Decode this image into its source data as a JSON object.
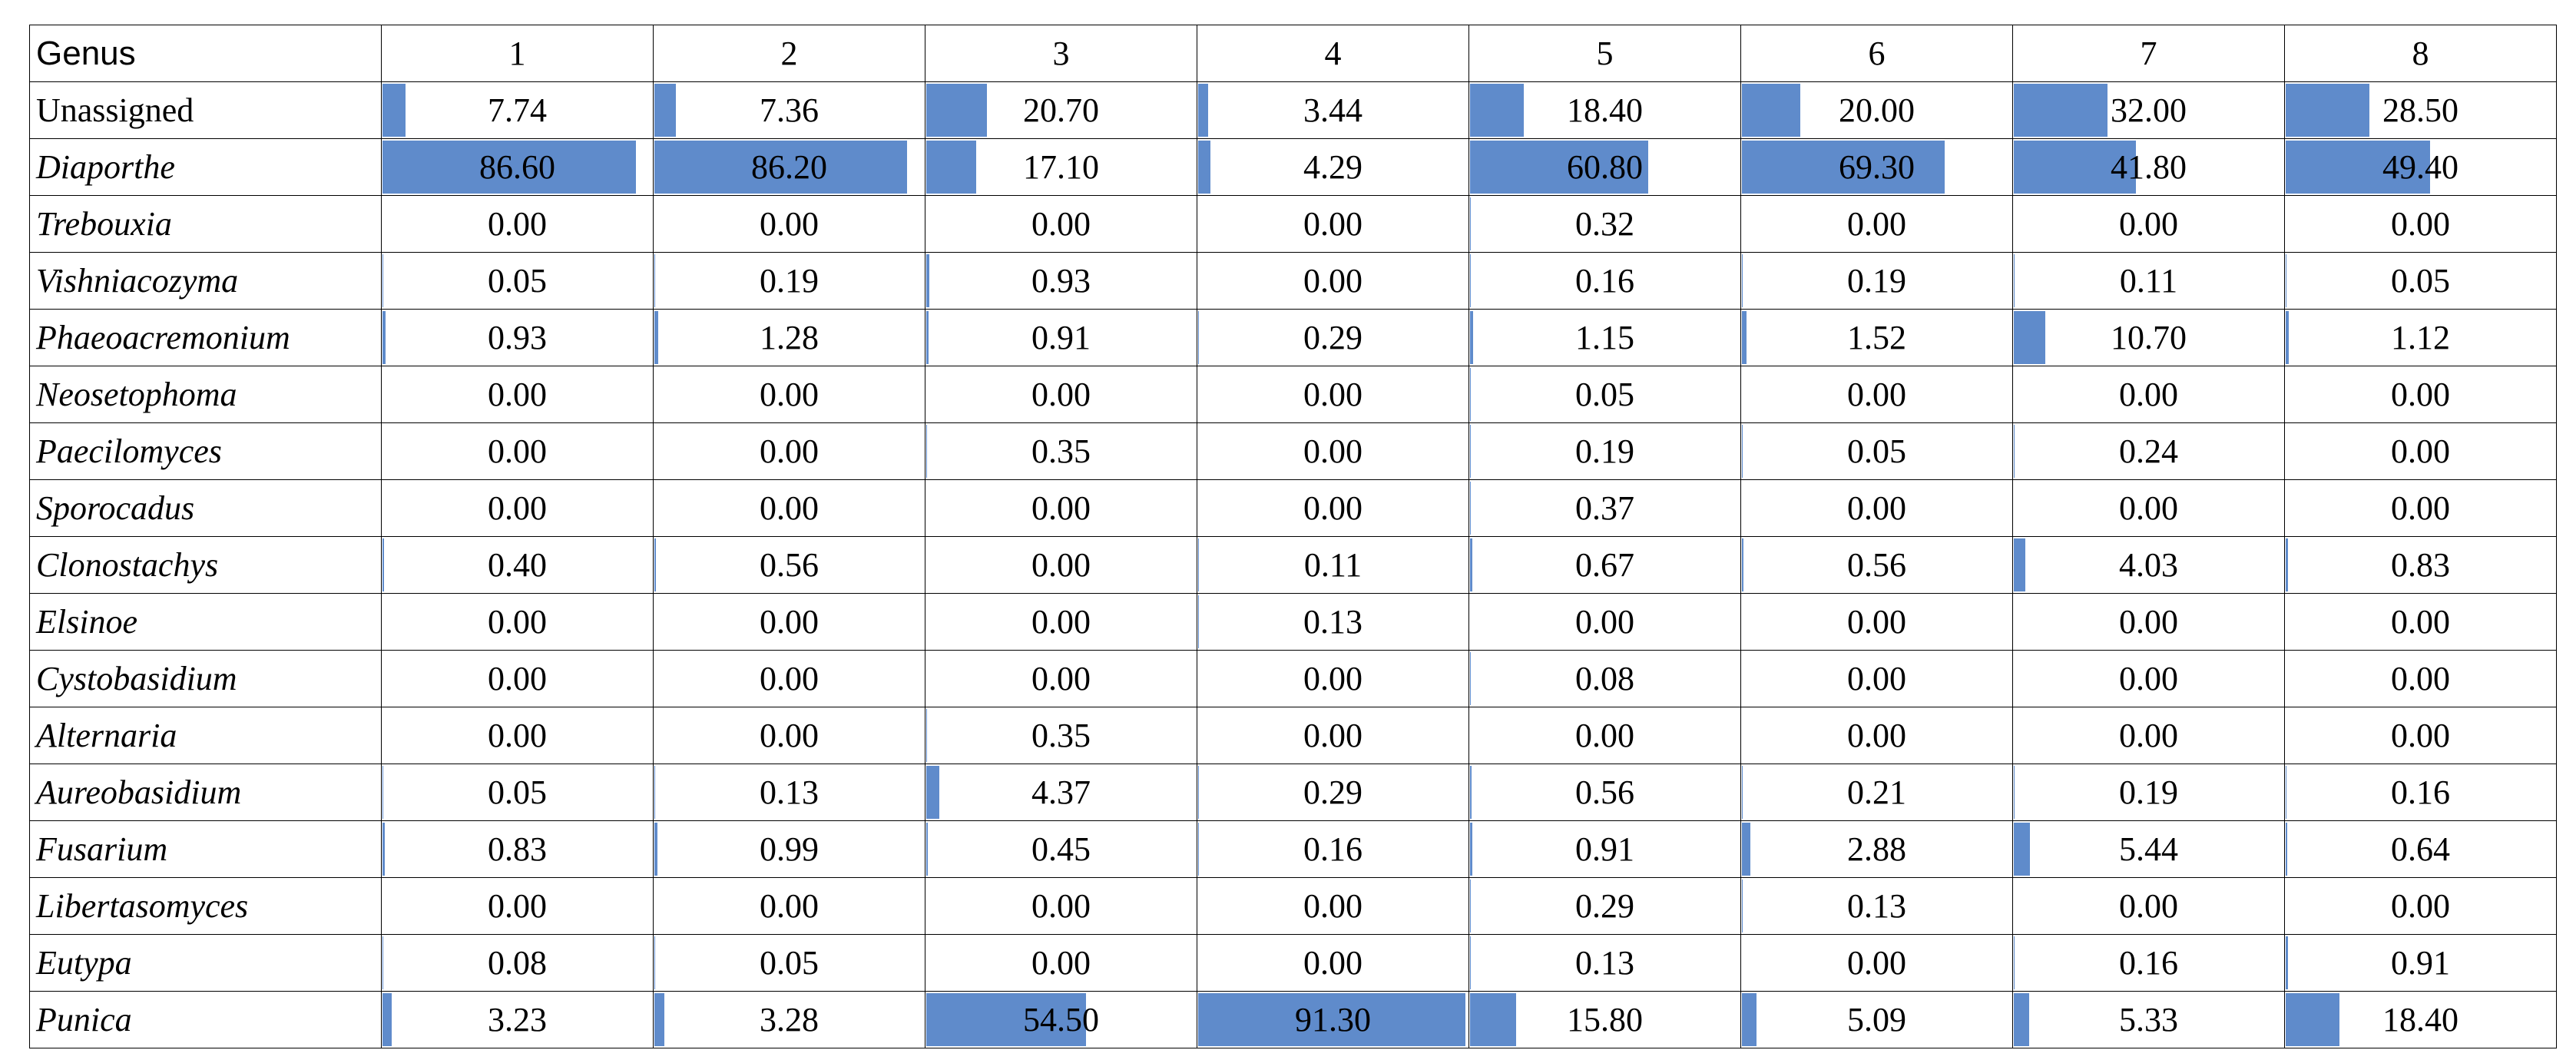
{
  "table": {
    "bar_color": "#5f8bcb",
    "columns": [
      "Genus",
      "1",
      "2",
      "3",
      "4",
      "5",
      "6",
      "7",
      "8"
    ],
    "rows": [
      {
        "genus": "Unassigned",
        "italic": false,
        "values": [
          "7.74",
          "7.36",
          "20.70",
          "3.44",
          "18.40",
          "20.00",
          "32.00",
          "28.50"
        ]
      },
      {
        "genus": "Diaporthe",
        "italic": true,
        "values": [
          "86.60",
          "86.20",
          "17.10",
          "4.29",
          "60.80",
          "69.30",
          "41.80",
          "49.40"
        ]
      },
      {
        "genus": "Trebouxia",
        "italic": true,
        "values": [
          "0.00",
          "0.00",
          "0.00",
          "0.00",
          "0.32",
          "0.00",
          "0.00",
          "0.00"
        ]
      },
      {
        "genus": "Vishniacozyma",
        "italic": true,
        "values": [
          "0.05",
          "0.19",
          "0.93",
          "0.00",
          "0.16",
          "0.19",
          "0.11",
          "0.05"
        ]
      },
      {
        "genus": "Phaeoacremonium",
        "italic": true,
        "values": [
          "0.93",
          "1.28",
          "0.91",
          "0.29",
          "1.15",
          "1.52",
          "10.70",
          "1.12"
        ]
      },
      {
        "genus": "Neosetophoma",
        "italic": true,
        "values": [
          "0.00",
          "0.00",
          "0.00",
          "0.00",
          "0.05",
          "0.00",
          "0.00",
          "0.00"
        ]
      },
      {
        "genus": "Paecilomyces",
        "italic": true,
        "values": [
          "0.00",
          "0.00",
          "0.35",
          "0.00",
          "0.19",
          "0.05",
          "0.24",
          "0.00"
        ]
      },
      {
        "genus": "Sporocadus",
        "italic": true,
        "values": [
          "0.00",
          "0.00",
          "0.00",
          "0.00",
          "0.37",
          "0.00",
          "0.00",
          "0.00"
        ]
      },
      {
        "genus": "Clonostachys",
        "italic": true,
        "values": [
          "0.40",
          "0.56",
          "0.00",
          "0.11",
          "0.67",
          "0.56",
          "4.03",
          "0.83"
        ]
      },
      {
        "genus": "Elsinoe",
        "italic": true,
        "values": [
          "0.00",
          "0.00",
          "0.00",
          "0.13",
          "0.00",
          "0.00",
          "0.00",
          "0.00"
        ]
      },
      {
        "genus": "Cystobasidium",
        "italic": true,
        "values": [
          "0.00",
          "0.00",
          "0.00",
          "0.00",
          "0.08",
          "0.00",
          "0.00",
          "0.00"
        ]
      },
      {
        "genus": "Alternaria",
        "italic": true,
        "values": [
          "0.00",
          "0.00",
          "0.35",
          "0.00",
          "0.00",
          "0.00",
          "0.00",
          "0.00"
        ]
      },
      {
        "genus": "Aureobasidium",
        "italic": true,
        "values": [
          "0.05",
          "0.13",
          "4.37",
          "0.29",
          "0.56",
          "0.21",
          "0.19",
          "0.16"
        ]
      },
      {
        "genus": "Fusarium",
        "italic": true,
        "values": [
          "0.83",
          "0.99",
          "0.45",
          "0.16",
          "0.91",
          "2.88",
          "5.44",
          "0.64"
        ]
      },
      {
        "genus": "Libertasomyces",
        "italic": true,
        "values": [
          "0.00",
          "0.00",
          "0.00",
          "0.00",
          "0.29",
          "0.13",
          "0.00",
          "0.00"
        ]
      },
      {
        "genus": "Eutypa",
        "italic": true,
        "values": [
          "0.08",
          "0.05",
          "0.00",
          "0.00",
          "0.13",
          "0.00",
          "0.16",
          "0.91"
        ]
      },
      {
        "genus": "Punica",
        "italic": true,
        "values": [
          "3.23",
          "3.28",
          "54.50",
          "91.30",
          "15.80",
          "5.09",
          "5.33",
          "18.40"
        ]
      }
    ]
  }
}
